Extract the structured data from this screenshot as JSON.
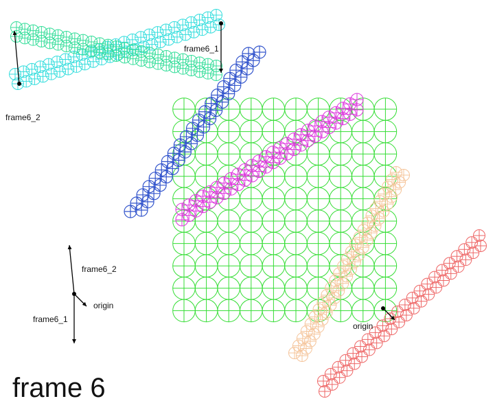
{
  "title": "frame 6",
  "labels": {
    "frame6_1_top": "frame6_1",
    "frame6_2_top": "frame6_2",
    "frame6_2_axes": "frame6_2",
    "origin_axes": "origin",
    "frame6_1_axes": "frame6_1",
    "origin_bottom": "origin"
  },
  "colors": {
    "grid": "#33dd33",
    "blue": "#3355cc",
    "magenta": "#dd33dd",
    "peach": "#f5c49a",
    "red": "#ee6666",
    "cyan": "#33dddd",
    "mint": "#33dd99",
    "arrow": "#000000",
    "text": "#111111"
  }
}
